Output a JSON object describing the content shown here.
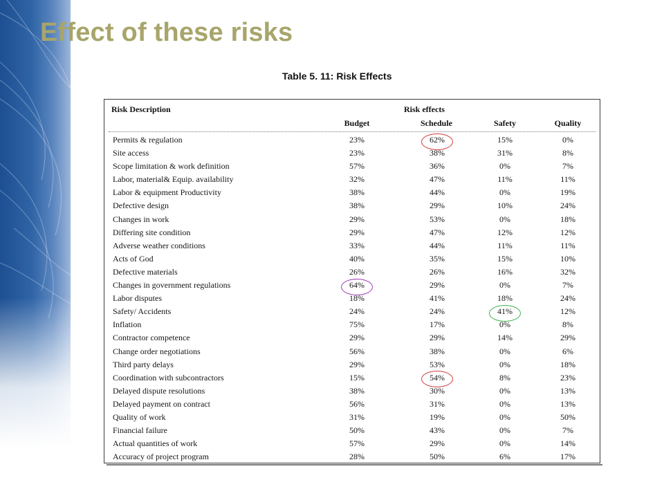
{
  "slide": {
    "title": "Effect of these risks"
  },
  "table": {
    "caption": "Table 5. 11: Risk Effects",
    "header": {
      "description": "Risk Description",
      "group": "Risk effects",
      "columns": [
        "Budget",
        "Schedule",
        "Safety",
        "Quality"
      ]
    },
    "rows": [
      {
        "desc": "Permits & regulation",
        "budget": "23%",
        "schedule": "62%",
        "safety": "15%",
        "quality": "0%"
      },
      {
        "desc": "Site access",
        "budget": "23%",
        "schedule": "38%",
        "safety": "31%",
        "quality": "8%"
      },
      {
        "desc": "Scope limitation & work definition",
        "budget": "57%",
        "schedule": "36%",
        "safety": "0%",
        "quality": "7%"
      },
      {
        "desc": "Labor, material& Equip. availability",
        "budget": "32%",
        "schedule": "47%",
        "safety": "11%",
        "quality": "11%"
      },
      {
        "desc": "Labor & equipment Productivity",
        "budget": "38%",
        "schedule": "44%",
        "safety": "0%",
        "quality": "19%"
      },
      {
        "desc": "Defective design",
        "budget": "38%",
        "schedule": "29%",
        "safety": "10%",
        "quality": "24%"
      },
      {
        "desc": "Changes in work",
        "budget": "29%",
        "schedule": "53%",
        "safety": "0%",
        "quality": "18%"
      },
      {
        "desc": "Differing site condition",
        "budget": "29%",
        "schedule": "47%",
        "safety": "12%",
        "quality": "12%"
      },
      {
        "desc": "Adverse weather conditions",
        "budget": "33%",
        "schedule": "44%",
        "safety": "11%",
        "quality": "11%"
      },
      {
        "desc": "Acts of God",
        "budget": "40%",
        "schedule": "35%",
        "safety": "15%",
        "quality": "10%"
      },
      {
        "desc": "Defective materials",
        "budget": "26%",
        "schedule": "26%",
        "safety": "16%",
        "quality": "32%"
      },
      {
        "desc": "Changes in government regulations",
        "budget": "64%",
        "schedule": "29%",
        "safety": "0%",
        "quality": "7%"
      },
      {
        "desc": "Labor disputes",
        "budget": "18%",
        "schedule": "41%",
        "safety": "18%",
        "quality": "24%"
      },
      {
        "desc": "Safety/ Accidents",
        "budget": "24%",
        "schedule": "24%",
        "safety": "41%",
        "quality": "12%"
      },
      {
        "desc": "Inflation",
        "budget": "75%",
        "schedule": "17%",
        "safety": "0%",
        "quality": "8%"
      },
      {
        "desc": "Contractor competence",
        "budget": "29%",
        "schedule": "29%",
        "safety": "14%",
        "quality": "29%"
      },
      {
        "desc": "Change order negotiations",
        "budget": "56%",
        "schedule": "38%",
        "safety": "0%",
        "quality": "6%"
      },
      {
        "desc": "Third party delays",
        "budget": "29%",
        "schedule": "53%",
        "safety": "0%",
        "quality": "18%"
      },
      {
        "desc": "Coordination with subcontractors",
        "budget": "15%",
        "schedule": "54%",
        "safety": "8%",
        "quality": "23%"
      },
      {
        "desc": "Delayed dispute resolutions",
        "budget": "38%",
        "schedule": "30%",
        "safety": "0%",
        "quality": "13%"
      },
      {
        "desc": "Delayed payment on contract",
        "budget": "56%",
        "schedule": "31%",
        "safety": "0%",
        "quality": "13%"
      },
      {
        "desc": "Quality of work",
        "budget": "31%",
        "schedule": "19%",
        "safety": "0%",
        "quality": "50%"
      },
      {
        "desc": "Financial failure",
        "budget": "50%",
        "schedule": "43%",
        "safety": "0%",
        "quality": "7%"
      },
      {
        "desc": "Actual quantities of work",
        "budget": "57%",
        "schedule": "29%",
        "safety": "0%",
        "quality": "14%"
      },
      {
        "desc": "Accuracy of project program",
        "budget": "28%",
        "schedule": "50%",
        "safety": "6%",
        "quality": "17%"
      }
    ],
    "highlights": [
      {
        "row": 0,
        "col": "schedule",
        "color": "#d23b3b"
      },
      {
        "row": 11,
        "col": "budget",
        "color": "#a03ab8"
      },
      {
        "row": 13,
        "col": "safety",
        "color": "#3cb34a"
      },
      {
        "row": 18,
        "col": "schedule",
        "color": "#d23b3b"
      }
    ]
  }
}
